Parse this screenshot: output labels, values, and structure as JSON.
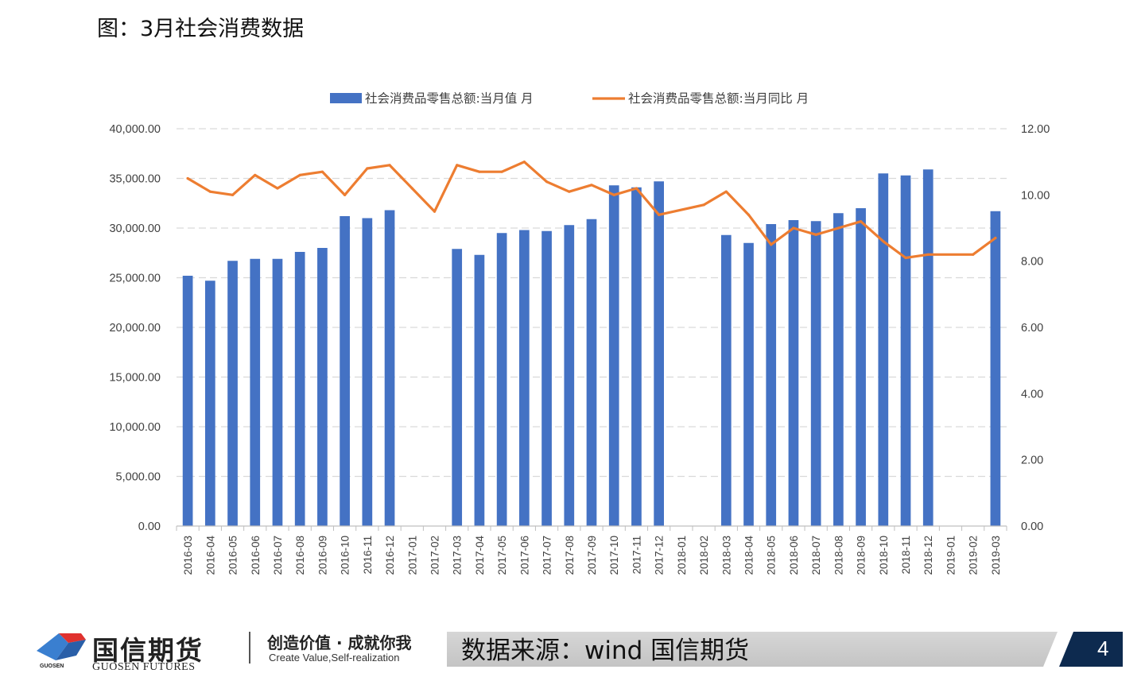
{
  "page": {
    "title": "图：3月社会消费数据",
    "source": "数据来源：wind 国信期货",
    "page_number": "4"
  },
  "logo": {
    "name_cn": "国信期货",
    "name_en": "GUOSEN FUTURES",
    "small_text": "GUOSEN",
    "slogan_cn": "创造价值 · 成就你我",
    "slogan_en": "Create Value,Self-realization"
  },
  "colors": {
    "bar": "#4472c4",
    "line": "#ed7d31",
    "footer_tab": "#0d2a4f"
  },
  "chart_data": {
    "type": "bar",
    "categories": [
      "2016-03",
      "2016-04",
      "2016-05",
      "2016-06",
      "2016-07",
      "2016-08",
      "2016-09",
      "2016-10",
      "2016-11",
      "2016-12",
      "2017-01",
      "2017-02",
      "2017-03",
      "2017-04",
      "2017-05",
      "2017-06",
      "2017-07",
      "2017-08",
      "2017-09",
      "2017-10",
      "2017-11",
      "2017-12",
      "2018-01",
      "2018-02",
      "2018-03",
      "2018-04",
      "2018-05",
      "2018-06",
      "2018-07",
      "2018-08",
      "2018-09",
      "2018-10",
      "2018-11",
      "2018-12",
      "2019-01",
      "2019-02",
      "2019-03"
    ],
    "series": [
      {
        "name": "社会消费品零售总额:当月值 月",
        "type": "bar",
        "axis": "left",
        "values": [
          25200,
          24700,
          26700,
          26900,
          26900,
          27600,
          28000,
          31200,
          31000,
          31800,
          null,
          null,
          27900,
          27300,
          29500,
          29800,
          29700,
          30300,
          30900,
          34300,
          34100,
          34700,
          null,
          null,
          29300,
          28500,
          30400,
          30800,
          30700,
          31500,
          32000,
          35500,
          35300,
          35900,
          null,
          null,
          31700
        ]
      },
      {
        "name": "社会消费品零售总额:当月同比 月",
        "type": "line",
        "axis": "right",
        "values": [
          10.5,
          10.1,
          10.0,
          10.6,
          10.2,
          10.6,
          10.7,
          10.0,
          10.8,
          10.9,
          10.2,
          9.5,
          10.9,
          10.7,
          10.7,
          11.0,
          10.4,
          10.1,
          10.3,
          10.0,
          10.2,
          9.4,
          null,
          9.7,
          10.1,
          9.4,
          8.5,
          9.0,
          8.8,
          9.0,
          9.2,
          8.6,
          8.1,
          8.2,
          null,
          8.2,
          8.7
        ]
      }
    ],
    "y_left": {
      "lim": [
        0,
        40000
      ],
      "ticks": [
        0,
        5000,
        10000,
        15000,
        20000,
        25000,
        30000,
        35000,
        40000
      ],
      "tick_labels": [
        "0.00",
        "5,000.00",
        "10,000.00",
        "15,000.00",
        "20,000.00",
        "25,000.00",
        "30,000.00",
        "35,000.00",
        "40,000.00"
      ]
    },
    "y_right": {
      "lim": [
        0,
        12
      ],
      "ticks": [
        0,
        2,
        4,
        6,
        8,
        10,
        12
      ],
      "tick_labels": [
        "0.00",
        "2.00",
        "4.00",
        "6.00",
        "8.00",
        "10.00",
        "12.00"
      ]
    },
    "grid": true,
    "legend_position": "top-center"
  }
}
